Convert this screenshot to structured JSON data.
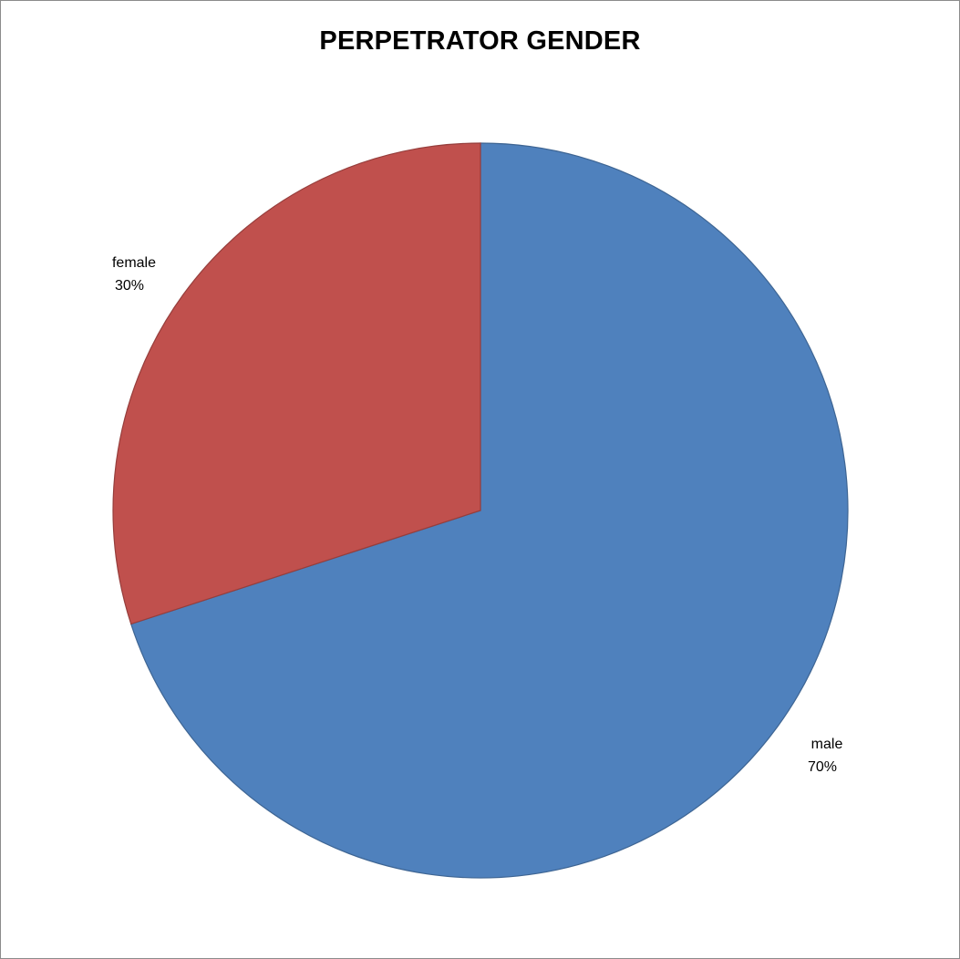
{
  "chart_data": {
    "type": "pie",
    "title": "PERPETRATOR GENDER",
    "categories": [
      "female",
      "male"
    ],
    "values": [
      30,
      70
    ],
    "units": "%",
    "colors": [
      "#C0504D",
      "#4F81BD"
    ],
    "data_labels": [
      {
        "category": "female",
        "value": "30%"
      },
      {
        "category": "male",
        "value": "70%"
      }
    ],
    "legend": "none"
  }
}
